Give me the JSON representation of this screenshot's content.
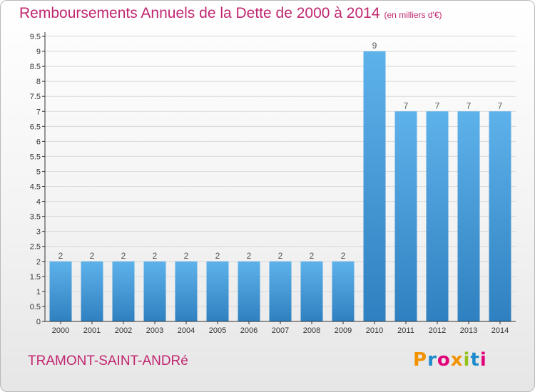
{
  "header": {
    "title": "Remboursements Annuels de la Dette de 2000 à 2014",
    "unit_note": "(en milliers d'€)"
  },
  "footer": {
    "commune": "TRAMONT-SAINT-ANDRé",
    "logo_text": "Proxiti",
    "logo_colors": [
      "#f39200",
      "#1d8acb",
      "#e2007a",
      "#f39200",
      "#95c11f",
      "#1d8acb",
      "#e2007a"
    ]
  },
  "colors": {
    "title": "#c0266f",
    "bar_light": "#5eb2ea",
    "bar_dark": "#2f80c0",
    "axis": "#333333",
    "grid": "#d9d9d9"
  },
  "chart_data": {
    "type": "bar",
    "categories": [
      "2000",
      "2001",
      "2002",
      "2003",
      "2004",
      "2005",
      "2006",
      "2007",
      "2008",
      "2009",
      "2010",
      "2011",
      "2012",
      "2013",
      "2014"
    ],
    "values": [
      2,
      2,
      2,
      2,
      2,
      2,
      2,
      2,
      2,
      2,
      9,
      7,
      7,
      7,
      7
    ],
    "data_labels": [
      "2",
      "2",
      "2",
      "2",
      "2",
      "2",
      "2",
      "2",
      "2",
      "2",
      "9",
      "7",
      "7",
      "7",
      "7"
    ],
    "yticks": [
      "0",
      "0.5",
      "1",
      "1.5",
      "2",
      "2.5",
      "3",
      "3.5",
      "4",
      "4.5",
      "5",
      "5.5",
      "6",
      "6.5",
      "7",
      "7.5",
      "8",
      "8.5",
      "9",
      "9.5"
    ],
    "ylim": [
      0,
      9.5
    ],
    "xlabel": "",
    "ylabel": ""
  }
}
